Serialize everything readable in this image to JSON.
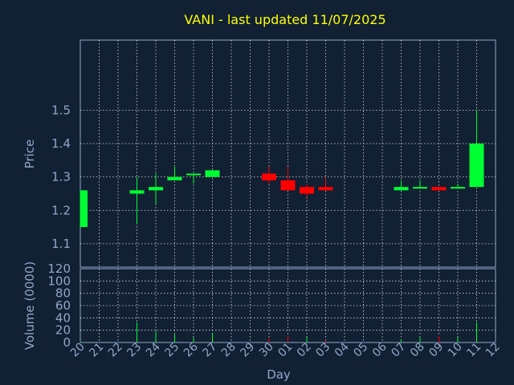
{
  "chart_data": [
    {
      "type": "candlestick",
      "title": "VANI - last updated 11/07/2025",
      "ylabel": "Price",
      "ylim": [
        1.03,
        1.71
      ],
      "yticks": [
        "1.1",
        "1.2",
        "1.3",
        "1.4",
        "1.5"
      ],
      "grid": true,
      "colors": {
        "up": "#00ff33",
        "down": "#ff0000"
      },
      "categories": [
        "20",
        "21",
        "22",
        "23",
        "24",
        "25",
        "26",
        "27",
        "28",
        "29",
        "30",
        "01",
        "02",
        "03",
        "04",
        "05",
        "06",
        "07",
        "08",
        "09",
        "10",
        "11",
        "12"
      ],
      "candles": [
        {
          "day": "20",
          "open": 1.15,
          "high": 1.26,
          "low": 1.15,
          "close": 1.26
        },
        {
          "day": "23",
          "open": 1.25,
          "high": 1.3,
          "low": 1.16,
          "close": 1.26
        },
        {
          "day": "24",
          "open": 1.26,
          "high": 1.31,
          "low": 1.22,
          "close": 1.27
        },
        {
          "day": "25",
          "open": 1.29,
          "high": 1.33,
          "low": 1.29,
          "close": 1.3
        },
        {
          "day": "26",
          "open": 1.31,
          "high": 1.31,
          "low": 1.28,
          "close": 1.31
        },
        {
          "day": "27",
          "open": 1.3,
          "high": 1.32,
          "low": 1.3,
          "close": 1.32
        },
        {
          "day": "30",
          "open": 1.31,
          "high": 1.33,
          "low": 1.28,
          "close": 1.29
        },
        {
          "day": "01",
          "open": 1.29,
          "high": 1.33,
          "low": 1.26,
          "close": 1.26
        },
        {
          "day": "02",
          "open": 1.27,
          "high": 1.28,
          "low": 1.24,
          "close": 1.25
        },
        {
          "day": "03",
          "open": 1.27,
          "high": 1.3,
          "low": 1.26,
          "close": 1.26
        },
        {
          "day": "07",
          "open": 1.26,
          "high": 1.29,
          "low": 1.26,
          "close": 1.27
        },
        {
          "day": "08",
          "open": 1.27,
          "high": 1.29,
          "low": 1.27,
          "close": 1.27
        },
        {
          "day": "09",
          "open": 1.27,
          "high": 1.27,
          "low": 1.26,
          "close": 1.26
        },
        {
          "day": "10",
          "open": 1.27,
          "high": 1.28,
          "low": 1.27,
          "close": 1.27
        },
        {
          "day": "11",
          "open": 1.27,
          "high": 1.5,
          "low": 1.27,
          "close": 1.4
        }
      ]
    },
    {
      "type": "bar",
      "ylabel": "Volume (0000)",
      "xlabel": "Day",
      "ylim": [
        0,
        120
      ],
      "yticks": [
        "0",
        "20",
        "40",
        "60",
        "80",
        "100",
        "120"
      ],
      "grid": true,
      "categories": [
        "20",
        "21",
        "22",
        "23",
        "24",
        "25",
        "26",
        "27",
        "28",
        "29",
        "30",
        "01",
        "02",
        "03",
        "04",
        "05",
        "06",
        "07",
        "08",
        "09",
        "10",
        "11",
        "12"
      ],
      "volumes": [
        {
          "day": "20",
          "value": 2,
          "color": "#00ff33"
        },
        {
          "day": "23",
          "value": 33,
          "color": "#00ff33"
        },
        {
          "day": "24",
          "value": 18,
          "color": "#00ff33"
        },
        {
          "day": "25",
          "value": 13,
          "color": "#00ff33"
        },
        {
          "day": "26",
          "value": 8,
          "color": "#00ff33"
        },
        {
          "day": "27",
          "value": 15,
          "color": "#00ff33"
        },
        {
          "day": "30",
          "value": 7,
          "color": "#ff0000"
        },
        {
          "day": "01",
          "value": 11,
          "color": "#ff0000"
        },
        {
          "day": "02",
          "value": 9,
          "color": "#00ff33"
        },
        {
          "day": "03",
          "value": 4,
          "color": "#ff0000"
        },
        {
          "day": "07",
          "value": 5,
          "color": "#00ff33"
        },
        {
          "day": "08",
          "value": 8,
          "color": "#00ff33"
        },
        {
          "day": "09",
          "value": 11,
          "color": "#ff0000"
        },
        {
          "day": "10",
          "value": 9,
          "color": "#00ff33"
        },
        {
          "day": "11",
          "value": 33,
          "color": "#00ff33"
        }
      ]
    }
  ]
}
